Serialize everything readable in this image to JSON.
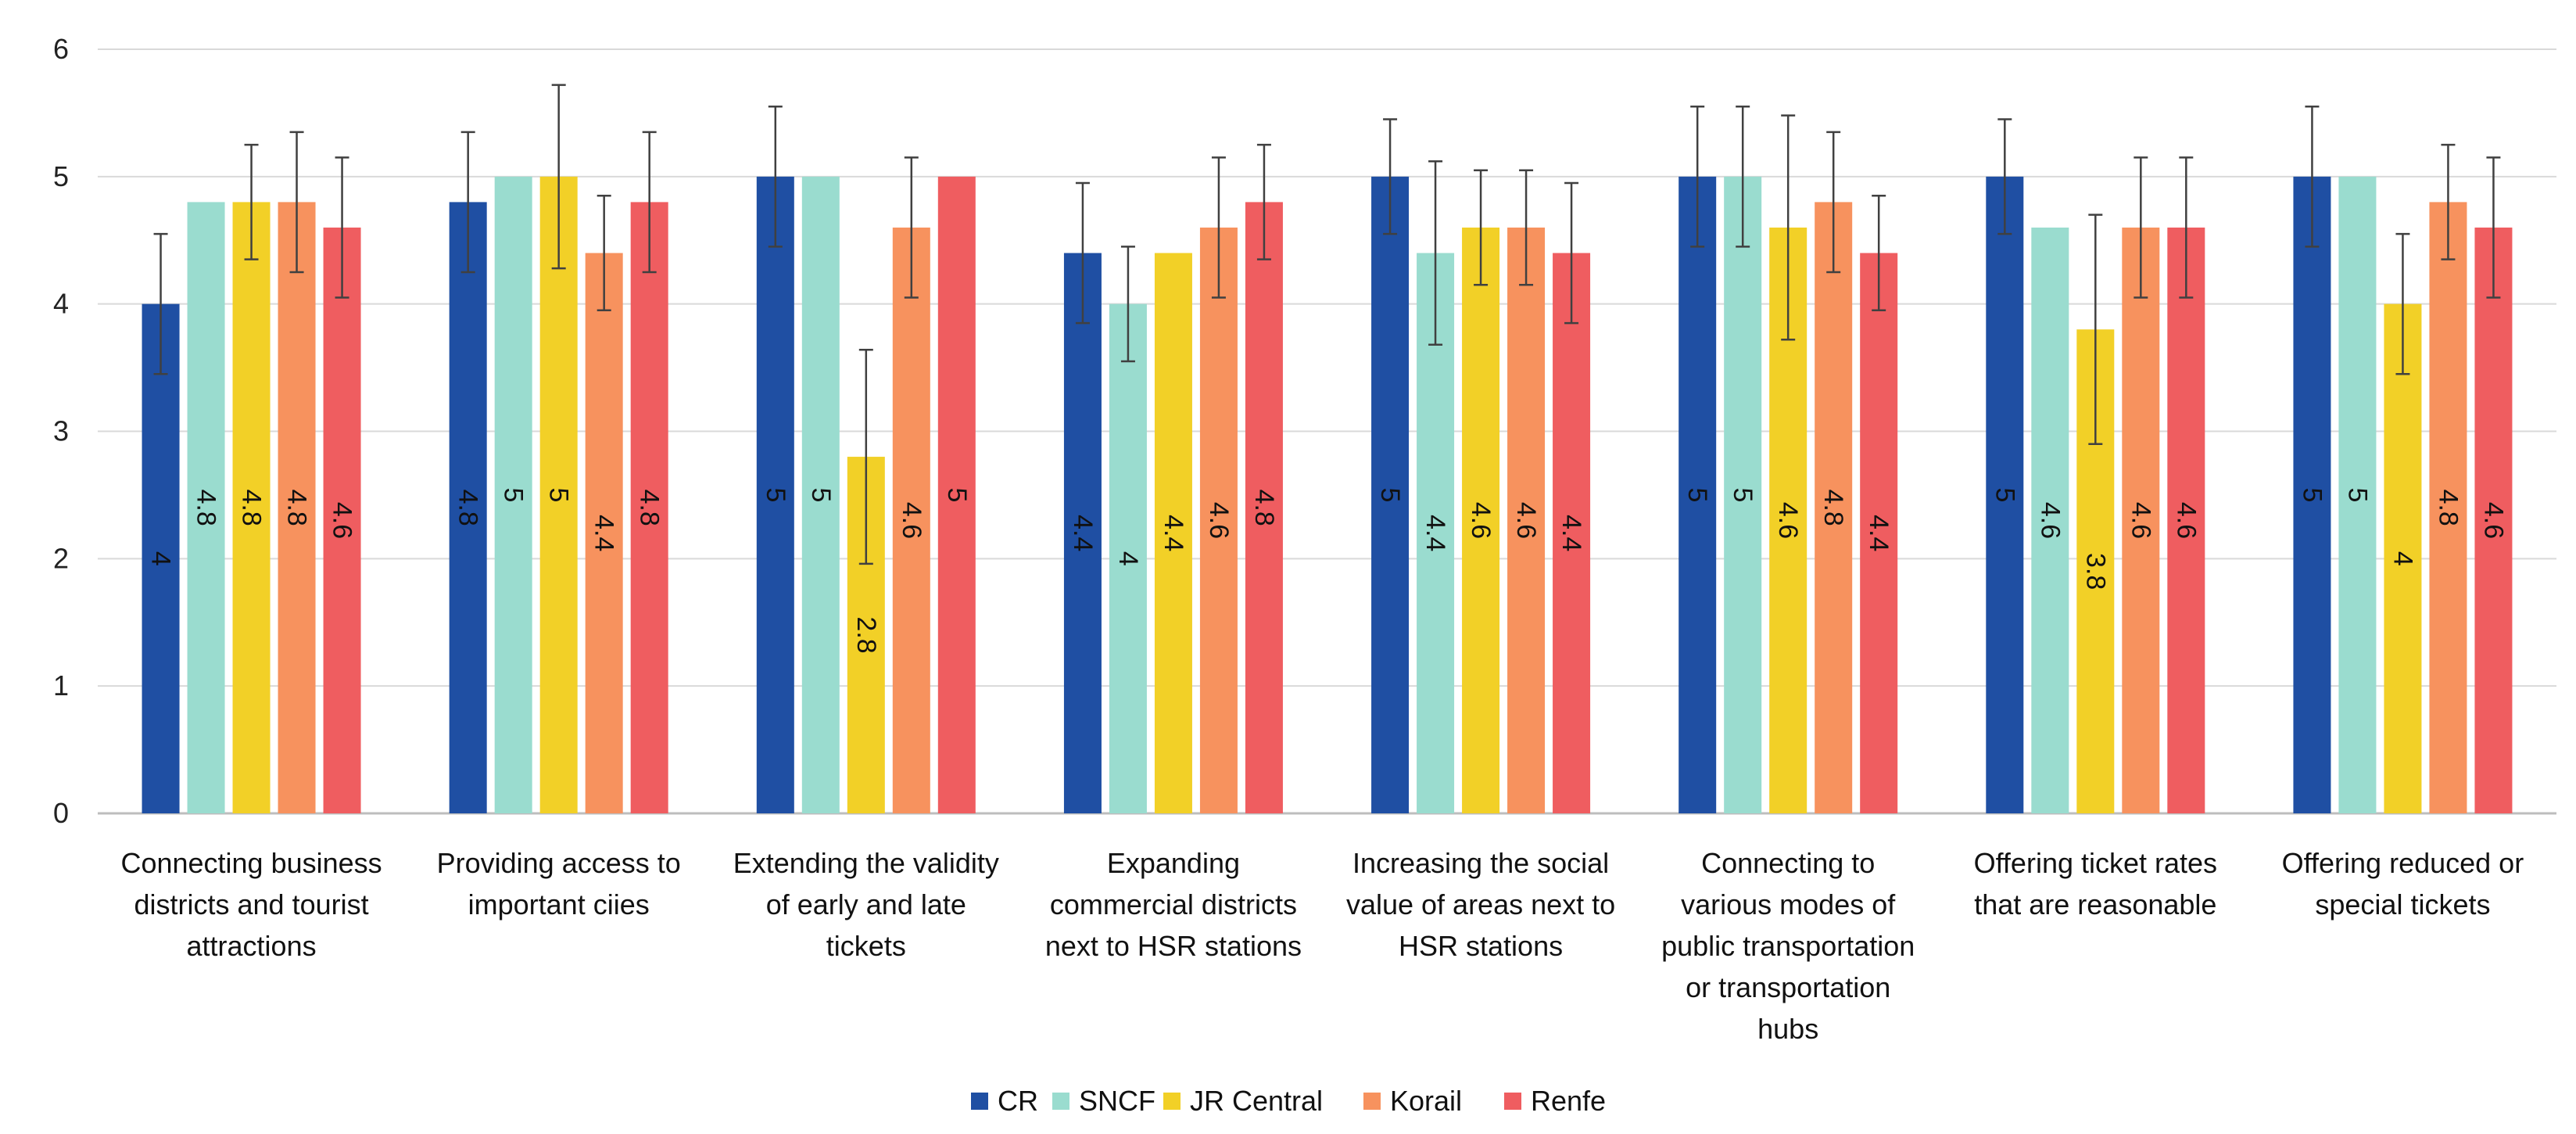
{
  "chart_data": {
    "type": "bar",
    "title": "",
    "xlabel": "",
    "ylabel": "",
    "ylim": [
      0,
      6
    ],
    "yticks": [
      0,
      1,
      2,
      3,
      4,
      5,
      6
    ],
    "grid": true,
    "legend_position": "bottom",
    "categories": [
      "Connecting business districts and tourist attractions",
      "Providing access to important ciies",
      "Extending the validity of early and late tickets",
      "Expanding commercial districts next to HSR stations",
      "Increasing the social value of areas next to HSR stations",
      "Connecting to various modes of public transportation or transportation hubs",
      "Offering ticket rates that are reasonable",
      "Offering reduced or special tickets"
    ],
    "category_lines": [
      [
        "Connecting business",
        "districts and tourist",
        "attractions"
      ],
      [
        "Providing access to",
        "important ciies"
      ],
      [
        "Extending the validity",
        "of early and late",
        "tickets"
      ],
      [
        "Expanding",
        "commercial districts",
        "next to HSR stations"
      ],
      [
        "Increasing the social",
        "value of areas next to",
        "HSR stations"
      ],
      [
        "Connecting to",
        "various modes of",
        "public transportation",
        "or transportation",
        "hubs"
      ],
      [
        "Offering ticket rates",
        "that are reasonable"
      ],
      [
        "Offering reduced or",
        "special tickets"
      ]
    ],
    "series": [
      {
        "name": "CR",
        "color": "#1f4fa3",
        "values": [
          4,
          4.8,
          5,
          4.4,
          5,
          5,
          5,
          5
        ],
        "errors": [
          0.55,
          0.55,
          0.55,
          0.55,
          0.45,
          0.55,
          0.45,
          0.55
        ]
      },
      {
        "name": "SNCF",
        "color": "#9adccf",
        "values": [
          4.8,
          5,
          5,
          4,
          4.4,
          5,
          4.6,
          5
        ],
        "errors": [
          0,
          0,
          0,
          0.45,
          0.72,
          0.55,
          0,
          0
        ]
      },
      {
        "name": "JR Central",
        "color": "#f2d027",
        "values": [
          4.8,
          5,
          2.8,
          4.4,
          4.6,
          4.6,
          3.8,
          4
        ],
        "errors": [
          0.45,
          0.72,
          0.84,
          0,
          0.45,
          0.88,
          0.9,
          0.55
        ]
      },
      {
        "name": "Korail",
        "color": "#f7925e",
        "values": [
          4.8,
          4.4,
          4.6,
          4.6,
          4.6,
          4.8,
          4.6,
          4.8
        ],
        "errors": [
          0.55,
          0.45,
          0.55,
          0.55,
          0.45,
          0.55,
          0.55,
          0.45
        ]
      },
      {
        "name": "Renfe",
        "color": "#ef5d60",
        "values": [
          4.6,
          4.8,
          5,
          4.8,
          4.4,
          4.4,
          4.6,
          4.6
        ],
        "errors": [
          0.55,
          0.55,
          0,
          0.45,
          0.55,
          0.45,
          0.55,
          0.55
        ]
      }
    ]
  }
}
